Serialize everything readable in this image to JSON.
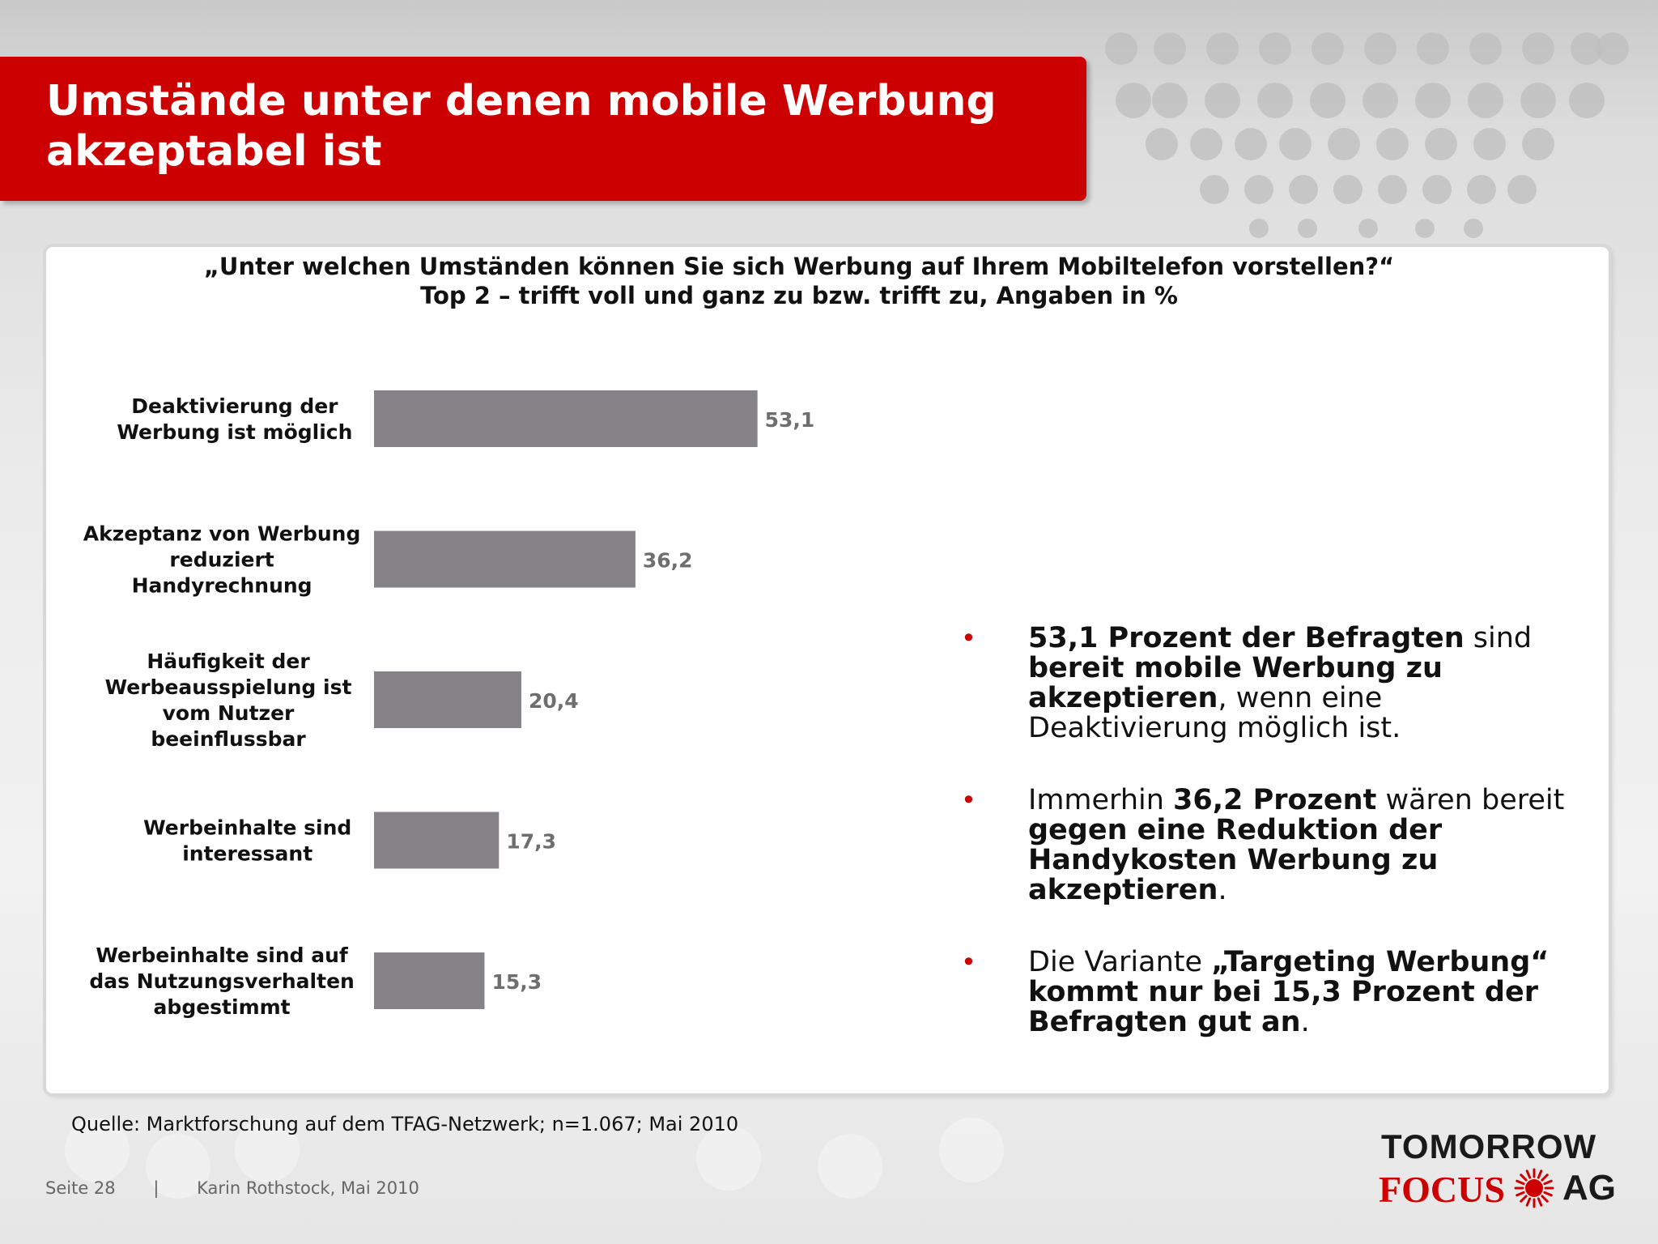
{
  "title": "Umstände unter denen mobile Werbung akzeptabel ist",
  "title_lines": [
    "Umstände unter denen mobile Werbung",
    "akzeptabel ist"
  ],
  "question": {
    "line1": "„Unter welchen Umständen können Sie sich Werbung auf Ihrem Mobiltelefon vorstellen?“",
    "line2": "Top 2 – trifft voll und ganz zu bzw. trifft zu, Angaben in %"
  },
  "chart_data": {
    "type": "bar",
    "orientation": "horizontal",
    "title": "„Unter welchen Umständen können Sie sich Werbung auf Ihrem Mobiltelefon vorstellen?“",
    "subtitle": "Top 2 – trifft voll und ganz zu bzw. trifft zu, Angaben in %",
    "categories": [
      [
        "Deaktivierung der",
        "Werbung ist möglich"
      ],
      [
        "Akzeptanz von Werbung",
        "reduziert",
        "Handyrechnung"
      ],
      [
        "Häufigkeit der",
        "Werbeausspielung ist",
        "vom Nutzer",
        "beeinflussbar"
      ],
      [
        "Werbeinhalte sind",
        "interessant"
      ],
      [
        "Werbeinhalte sind auf",
        "das Nutzungsverhalten",
        "abgestimmt"
      ]
    ],
    "values": [
      53.1,
      36.2,
      20.4,
      17.3,
      15.3
    ],
    "value_labels": [
      "53,1",
      "36,2",
      "20,4",
      "17,3",
      "15,3"
    ],
    "xlim": [
      0,
      100
    ],
    "grid": false,
    "bar_color": "#858387",
    "value_label_color": "#6e6e6e"
  },
  "bullets": [
    [
      {
        "text": "53,1 Prozent der Befragten",
        "bold": true
      },
      {
        "text": " sind ",
        "bold": false
      },
      {
        "text": "bereit mobile Werbung zu akzeptieren",
        "bold": true
      },
      {
        "text": ", wenn eine Deaktivierung möglich ist.",
        "bold": false
      }
    ],
    [
      {
        "text": "Immerhin ",
        "bold": false
      },
      {
        "text": "36,2 Prozent",
        "bold": true
      },
      {
        "text": " wären bereit ",
        "bold": false
      },
      {
        "text": "gegen eine Reduktion der Handykosten Werbung zu akzeptieren",
        "bold": true
      },
      {
        "text": ".",
        "bold": false
      }
    ],
    [
      {
        "text": "Die Variante ",
        "bold": false
      },
      {
        "text": "„Targeting Werbung“ kommt nur bei 15,3 Prozent der Befragten gut an",
        "bold": true
      },
      {
        "text": ".",
        "bold": false
      }
    ]
  ],
  "bullet_symbol": "•",
  "source": "Quelle: Marktforschung auf dem TFAG-Netzwerk; n=1.067; Mai 2010",
  "footer": {
    "page": "Seite 28",
    "separator": "|",
    "author": "Karin Rothstock, Mai 2010"
  },
  "logo": {
    "line1": "TOMORROW",
    "focus": "FOCUS",
    "ag": "AG",
    "icon": "sun-icon"
  },
  "colors": {
    "accent": "#cc0000",
    "bar": "#858387"
  }
}
